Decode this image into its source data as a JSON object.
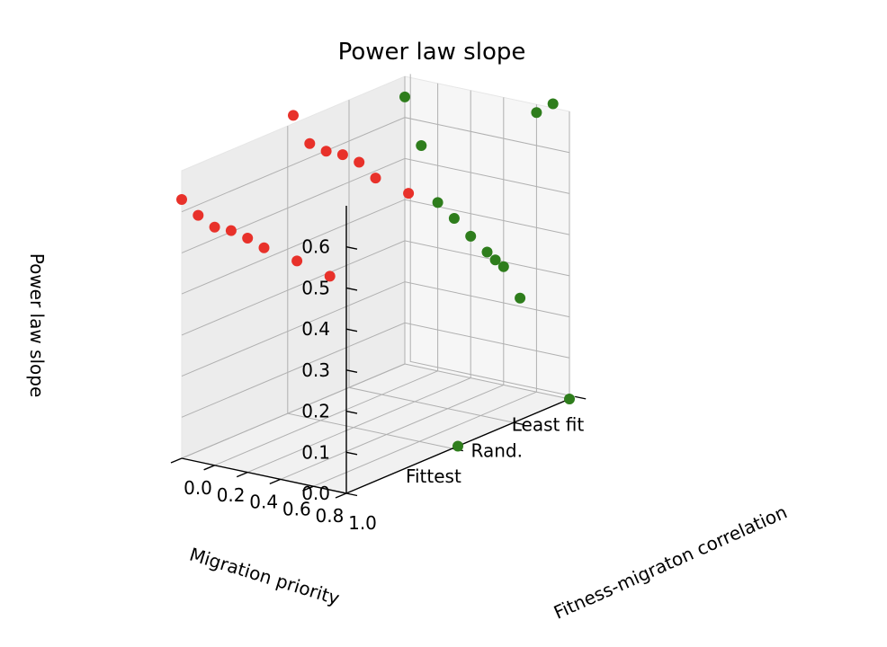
{
  "chart_data": {
    "type": "scatter",
    "projection": "3d",
    "title": "Power law slope",
    "xlabel": "Migration priority",
    "ylabel": "Fitness-migraton correlation",
    "zlabel": "Power law slope",
    "x_ticks": [
      "Least fit",
      "Rand.",
      "Fittest"
    ],
    "y_ticks": [
      "0.0",
      "0.2",
      "0.4",
      "0.6",
      "0.8",
      "1.0"
    ],
    "z_ticks": [
      "0.0",
      "0.1",
      "0.2",
      "0.3",
      "0.4",
      "0.5",
      "0.6"
    ],
    "xlim": [
      0,
      2
    ],
    "ylim": [
      0,
      1
    ],
    "zlim": [
      0,
      0.65
    ],
    "grid": true,
    "series": [
      {
        "color": "#e8312a",
        "points": [
          {
            "x": 0,
            "y": 0.0,
            "z": 0.63
          },
          {
            "x": 0,
            "y": 0.1,
            "z": 0.6
          },
          {
            "x": 0,
            "y": 0.2,
            "z": 0.58
          },
          {
            "x": 0,
            "y": 0.3,
            "z": 0.58
          },
          {
            "x": 0,
            "y": 0.4,
            "z": 0.57
          },
          {
            "x": 0,
            "y": 0.5,
            "z": 0.555
          },
          {
            "x": 0,
            "y": 0.7,
            "z": 0.54
          },
          {
            "x": 0,
            "y": 0.9,
            "z": 0.52
          },
          {
            "x": 1,
            "y": 0.0,
            "z": 0.72
          },
          {
            "x": 1,
            "y": 0.1,
            "z": 0.66
          },
          {
            "x": 1,
            "y": 0.2,
            "z": 0.65
          },
          {
            "x": 1,
            "y": 0.3,
            "z": 0.65
          },
          {
            "x": 1,
            "y": 0.4,
            "z": 0.64
          },
          {
            "x": 1,
            "y": 0.5,
            "z": 0.61
          },
          {
            "x": 1,
            "y": 0.7,
            "z": 0.59
          }
        ]
      },
      {
        "color": "#2e7d1c",
        "points": [
          {
            "x": 1,
            "y": 1.0,
            "z": 0.0
          },
          {
            "x": 2,
            "y": 0.0,
            "z": 0.65
          },
          {
            "x": 2,
            "y": 0.1,
            "z": 0.54
          },
          {
            "x": 2,
            "y": 0.2,
            "z": 0.41
          },
          {
            "x": 2,
            "y": 0.3,
            "z": 0.38
          },
          {
            "x": 2,
            "y": 0.4,
            "z": 0.345
          },
          {
            "x": 2,
            "y": 0.5,
            "z": 0.315
          },
          {
            "x": 2,
            "y": 0.55,
            "z": 0.3
          },
          {
            "x": 2,
            "y": 0.6,
            "z": 0.288
          },
          {
            "x": 2,
            "y": 0.7,
            "z": 0.22
          },
          {
            "x": 2,
            "y": 0.8,
            "z": 0.68
          },
          {
            "x": 2,
            "y": 0.9,
            "z": 0.71
          },
          {
            "x": 2,
            "y": 1.0,
            "z": 0.0
          }
        ]
      }
    ]
  }
}
